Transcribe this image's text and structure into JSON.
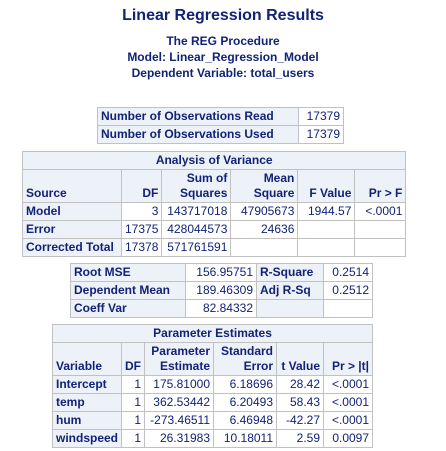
{
  "header": {
    "title": "Linear Regression Results",
    "procedure": "The REG Procedure",
    "model": "Model: Linear_Regression_Model",
    "dependent": "Dependent Variable: total_users"
  },
  "observations": {
    "rows": [
      {
        "label": "Number of Observations Read",
        "value": "17379"
      },
      {
        "label": "Number of Observations Used",
        "value": "17379"
      }
    ]
  },
  "anova": {
    "caption": "Analysis of Variance",
    "headers": {
      "source": "Source",
      "df": "DF",
      "ss_top": "Sum of",
      "ss_bottom": "Squares",
      "ms_top": "Mean",
      "ms_bottom": "Square",
      "f": "F Value",
      "p": "Pr > F"
    },
    "rows": [
      {
        "source": "Model",
        "df": "3",
        "ss": "143717018",
        "ms": "47905673",
        "f": "1944.57",
        "p": "<.0001"
      },
      {
        "source": "Error",
        "df": "17375",
        "ss": "428044573",
        "ms": "24636",
        "f": "",
        "p": ""
      },
      {
        "source": "Corrected Total",
        "df": "17378",
        "ss": "571761591",
        "ms": "",
        "f": "",
        "p": ""
      }
    ]
  },
  "fit": {
    "rows": [
      {
        "l1": "Root MSE",
        "v1": "156.95751",
        "l2": "R-Square",
        "v2": "0.2514"
      },
      {
        "l1": "Dependent Mean",
        "v1": "189.46309",
        "l2": "Adj R-Sq",
        "v2": "0.2512"
      },
      {
        "l1": "Coeff Var",
        "v1": "82.84332",
        "l2": "",
        "v2": ""
      }
    ]
  },
  "params": {
    "caption": "Parameter Estimates",
    "headers": {
      "variable": "Variable",
      "df": "DF",
      "est_top": "Parameter",
      "est_bottom": "Estimate",
      "se_top": "Standard",
      "se_bottom": "Error",
      "t": "t Value",
      "p": "Pr > |t|"
    },
    "rows": [
      {
        "variable": "Intercept",
        "df": "1",
        "est": "175.81000",
        "se": "6.18696",
        "t": "28.42",
        "p": "<.0001"
      },
      {
        "variable": "temp",
        "df": "1",
        "est": "362.53442",
        "se": "6.20493",
        "t": "58.43",
        "p": "<.0001"
      },
      {
        "variable": "hum",
        "df": "1",
        "est": "-273.46511",
        "se": "6.46948",
        "t": "-42.27",
        "p": "<.0001"
      },
      {
        "variable": "windspeed",
        "df": "1",
        "est": "26.31983",
        "se": "10.18011",
        "t": "2.59",
        "p": "0.0097"
      }
    ]
  }
}
